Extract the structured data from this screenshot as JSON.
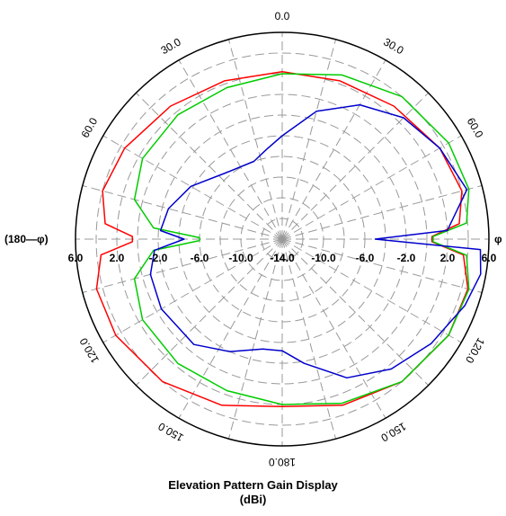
{
  "caption": {
    "title": "Elevation Pattern Gain Display",
    "unit": "(dBi)"
  },
  "left_label": "(180—φ)",
  "right_label": "φ",
  "chart_data": {
    "type": "polar-line",
    "title": "Elevation Pattern Gain Display",
    "unit_label": "(dBi)",
    "angle_unit": "degrees",
    "angle_labels": [
      {
        "text": "0.0",
        "angle": 0
      },
      {
        "text": "30.0",
        "angle": 30
      },
      {
        "text": "60.0",
        "angle": 60
      },
      {
        "text": "120.0",
        "angle": 120
      },
      {
        "text": "150.0",
        "angle": 150
      },
      {
        "text": "180.0",
        "angle": 180
      },
      {
        "text": "150.0",
        "angle": 210
      },
      {
        "text": "120.0",
        "angle": 240
      },
      {
        "text": "60.0",
        "angle": 300
      },
      {
        "text": "30.0",
        "angle": 330
      }
    ],
    "radial_ticks": [
      -14.0,
      -10.0,
      -6.0,
      -2.0,
      2.0,
      6.0
    ],
    "radial_range": [
      -14.0,
      6.0
    ],
    "grid": true,
    "series": [
      {
        "color": "#ff0000",
        "points": [
          [
            0,
            2.2
          ],
          [
            20,
            2.3
          ],
          [
            40,
            2.8
          ],
          [
            60,
            3.6
          ],
          [
            75,
            4.0
          ],
          [
            85,
            3.2
          ],
          [
            89,
            0.5
          ],
          [
            91,
            0.5
          ],
          [
            95,
            3.6
          ],
          [
            105,
            4.6
          ],
          [
            120,
            4.6
          ],
          [
            140,
            4.0
          ],
          [
            160,
            3.1
          ],
          [
            180,
            2.2
          ],
          [
            200,
            3.1
          ],
          [
            220,
            4.0
          ],
          [
            240,
            4.6
          ],
          [
            255,
            4.6
          ],
          [
            265,
            3.6
          ],
          [
            269,
            0.5
          ],
          [
            271,
            0.5
          ],
          [
            275,
            3.2
          ],
          [
            285,
            4.0
          ],
          [
            300,
            3.6
          ],
          [
            320,
            2.8
          ],
          [
            340,
            2.3
          ],
          [
            360,
            2.2
          ]
        ]
      },
      {
        "color": "#00cc00",
        "points": [
          [
            0,
            2.0
          ],
          [
            20,
            2.9
          ],
          [
            40,
            4.0
          ],
          [
            60,
            4.6
          ],
          [
            75,
            4.7
          ],
          [
            85,
            3.9
          ],
          [
            89,
            0.6
          ],
          [
            91,
            0.6
          ],
          [
            95,
            3.9
          ],
          [
            105,
            4.7
          ],
          [
            120,
            4.6
          ],
          [
            140,
            4.0
          ],
          [
            160,
            2.9
          ],
          [
            180,
            2.0
          ],
          [
            200,
            1.6
          ],
          [
            220,
            1.7
          ],
          [
            240,
            1.6
          ],
          [
            255,
            0.8
          ],
          [
            265,
            -1.5
          ],
          [
            269,
            -6.0
          ],
          [
            271,
            -6.0
          ],
          [
            275,
            -1.5
          ],
          [
            285,
            0.8
          ],
          [
            300,
            1.6
          ],
          [
            320,
            1.7
          ],
          [
            340,
            1.6
          ],
          [
            360,
            2.0
          ]
        ]
      },
      {
        "color": "#0000cc",
        "points": [
          [
            0,
            -4.0
          ],
          [
            15,
            -1.2
          ],
          [
            30,
            1.0
          ],
          [
            45,
            2.6
          ],
          [
            60,
            3.6
          ],
          [
            75,
            4.5
          ],
          [
            87,
            2.0
          ],
          [
            90,
            -5.0
          ],
          [
            93,
            5.2
          ],
          [
            100,
            5.5
          ],
          [
            110,
            4.8
          ],
          [
            125,
            3.6
          ],
          [
            140,
            2.4
          ],
          [
            155,
            0.8
          ],
          [
            170,
            -1.8
          ],
          [
            180,
            -3.2
          ],
          [
            190,
            -3.2
          ],
          [
            205,
            -2.0
          ],
          [
            220,
            -0.7
          ],
          [
            240,
            -0.5
          ],
          [
            255,
            -0.8
          ],
          [
            265,
            -1.6
          ],
          [
            270,
            -4.5
          ],
          [
            274,
            -2.2
          ],
          [
            285,
            -2.6
          ],
          [
            300,
            -3.8
          ],
          [
            320,
            -5.6
          ],
          [
            340,
            -6.0
          ],
          [
            350,
            -5.2
          ],
          [
            360,
            -4.0
          ]
        ]
      }
    ]
  }
}
